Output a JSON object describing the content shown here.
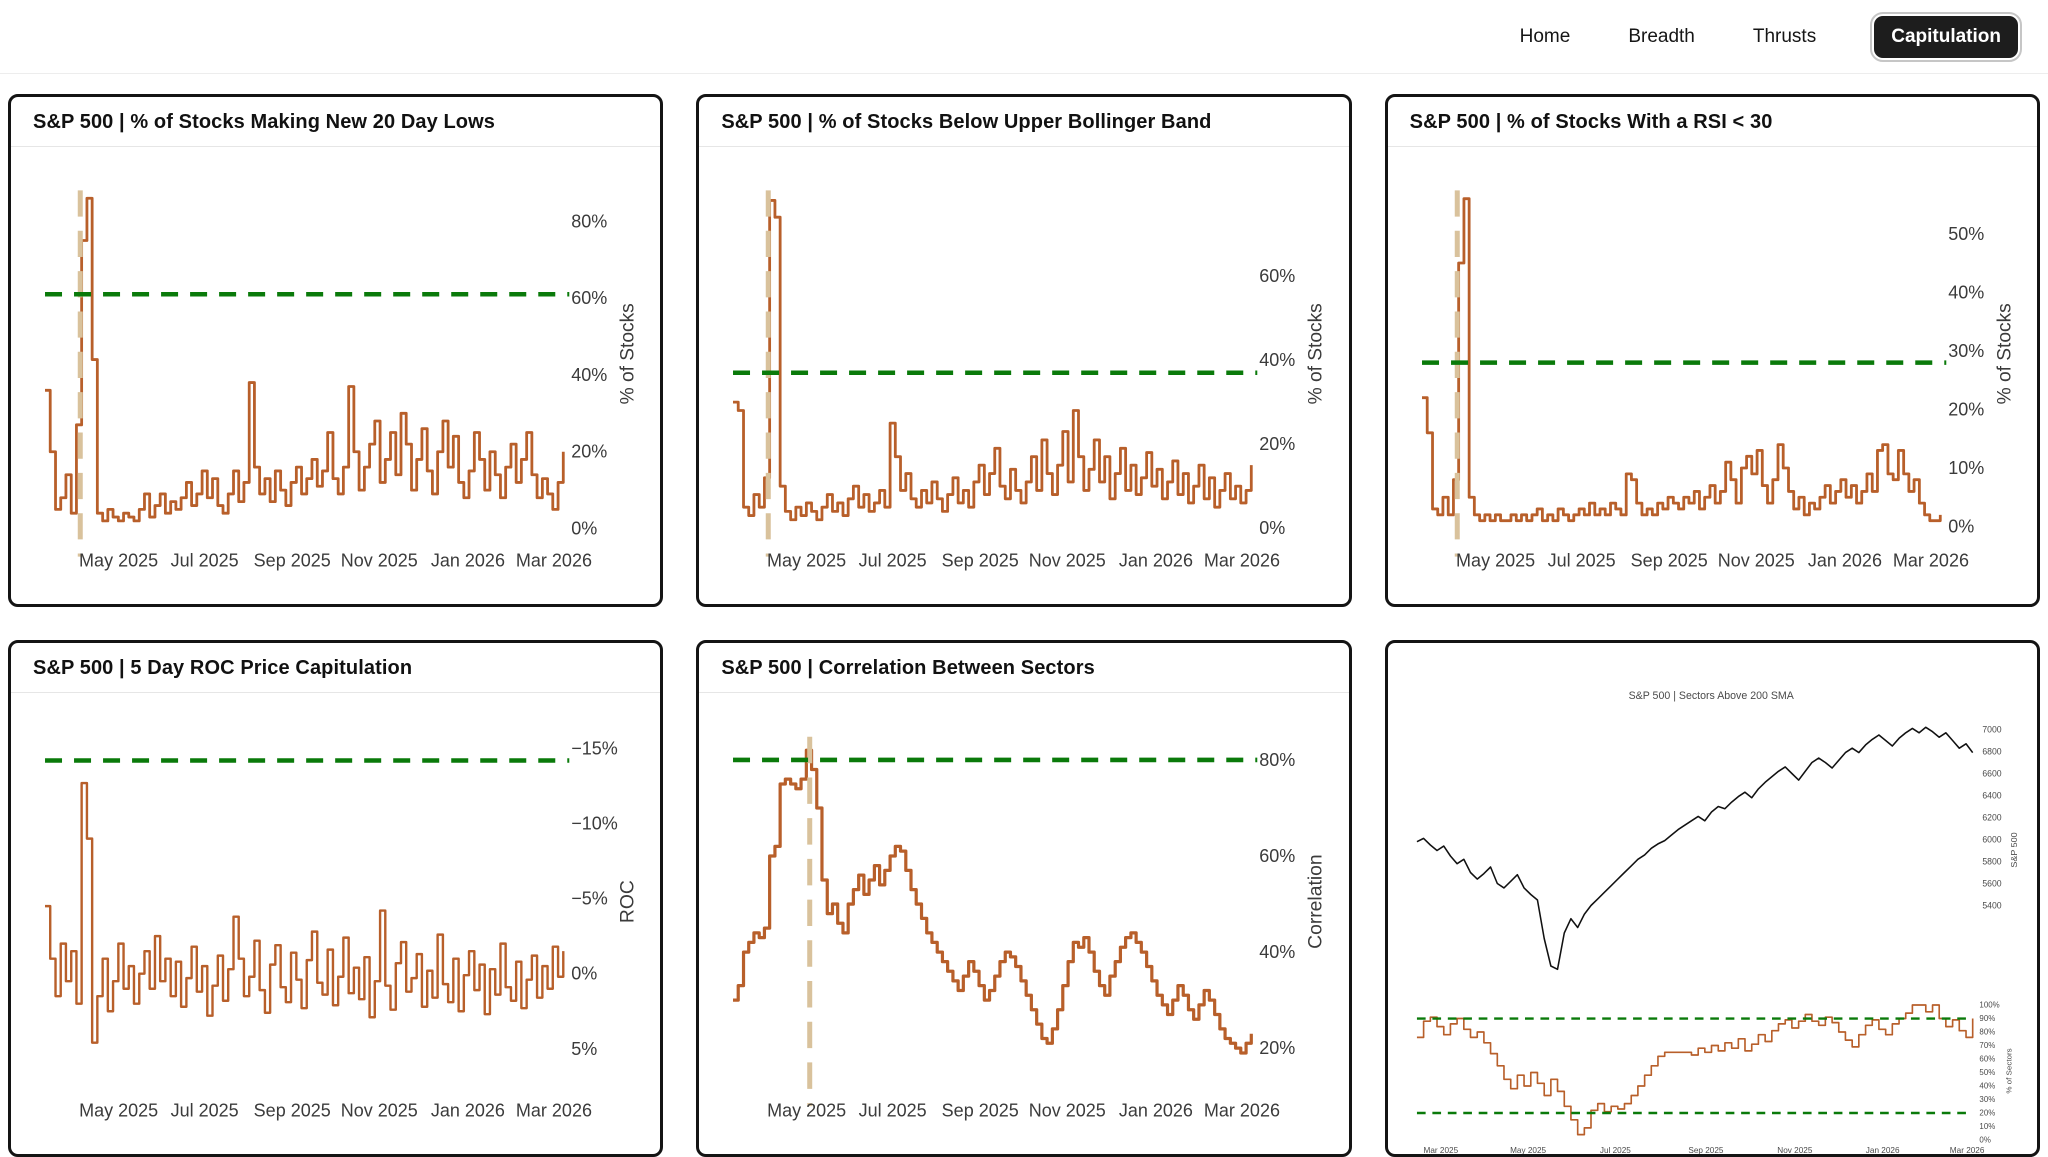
{
  "nav": {
    "items": [
      {
        "label": "Home",
        "active": false
      },
      {
        "label": "Breadth",
        "active": false
      },
      {
        "label": "Thrusts",
        "active": false
      },
      {
        "label": "Capitulation",
        "active": true
      }
    ]
  },
  "colors": {
    "series": "#b85f2a",
    "threshold": "#0a7a0a",
    "event_line": "#d9c29c",
    "price": "#111111",
    "tick_text": "#3b3b3b",
    "mini_text": "#4a4a4a"
  },
  "panels": [
    {
      "title": "S&P 500 | % of Stocks Making New 20 Day Lows"
    },
    {
      "title": "S&P 500 | % of Stocks Below Upper Bollinger Band"
    },
    {
      "title": "S&P 500 | % of Stocks With a RSI < 30"
    },
    {
      "title": "S&P 500 | 5 Day ROC Price Capitulation"
    },
    {
      "title": "S&P 500 | Correlation Between Sectors"
    }
  ],
  "chart_data": [
    {
      "type": "step",
      "title": "S&P 500 | % of Stocks Making New 20 Day Lows",
      "ylabel": "% of Stocks",
      "ytop": 92,
      "ybottom": -1,
      "yticks": [
        {
          "v": 0,
          "label": "0%"
        },
        {
          "v": 20,
          "label": "20%"
        },
        {
          "v": 40,
          "label": "40%"
        },
        {
          "v": 60,
          "label": "60%"
        },
        {
          "v": 80,
          "label": "80%"
        }
      ],
      "xticks": [
        {
          "f": 0.142,
          "label": "May 2025"
        },
        {
          "f": 0.308,
          "label": "Jul 2025"
        },
        {
          "f": 0.477,
          "label": "Sep 2025"
        },
        {
          "f": 0.645,
          "label": "Nov 2025"
        },
        {
          "f": 0.816,
          "label": "Jan 2026"
        },
        {
          "f": 0.982,
          "label": "Mar 2026"
        }
      ],
      "threshold": 61,
      "vline": 0.068,
      "line_width": 2.8,
      "values": [
        36,
        20,
        5,
        8,
        14,
        4,
        27,
        75,
        86,
        44,
        4,
        2,
        5,
        3,
        2,
        4,
        3,
        2,
        5,
        9,
        3,
        6,
        9,
        4,
        7,
        5,
        8,
        12,
        6,
        9,
        15,
        8,
        13,
        6,
        4,
        9,
        15,
        7,
        12,
        38,
        16,
        9,
        13,
        7,
        15,
        10,
        6,
        12,
        16,
        9,
        13,
        18,
        11,
        15,
        25,
        13,
        9,
        16,
        37,
        20,
        10,
        16,
        22,
        28,
        12,
        18,
        25,
        14,
        30,
        22,
        10,
        18,
        26,
        15,
        9,
        20,
        28,
        16,
        24,
        12,
        8,
        15,
        25,
        18,
        10,
        20,
        14,
        8,
        16,
        22,
        12,
        18,
        25,
        14,
        8,
        13,
        9,
        5,
        12,
        20
      ]
    },
    {
      "type": "step",
      "title": "S&P 500 | % of Stocks Below Upper Bollinger Band",
      "ylabel": "% of Stocks",
      "ytop": 84,
      "ybottom": -1,
      "yticks": [
        {
          "v": 0,
          "label": "0%"
        },
        {
          "v": 20,
          "label": "20%"
        },
        {
          "v": 40,
          "label": "40%"
        },
        {
          "v": 60,
          "label": "60%"
        }
      ],
      "xticks": [
        {
          "f": 0.142,
          "label": "May 2025"
        },
        {
          "f": 0.308,
          "label": "Jul 2025"
        },
        {
          "f": 0.477,
          "label": "Sep 2025"
        },
        {
          "f": 0.645,
          "label": "Nov 2025"
        },
        {
          "f": 0.816,
          "label": "Jan 2026"
        },
        {
          "f": 0.982,
          "label": "Mar 2026"
        }
      ],
      "threshold": 37,
      "vline": 0.068,
      "line_width": 2.8,
      "values": [
        30,
        28,
        5,
        3,
        8,
        5,
        12,
        78,
        74,
        10,
        4,
        2,
        5,
        3,
        6,
        4,
        2,
        5,
        8,
        4,
        6,
        3,
        7,
        10,
        5,
        8,
        4,
        6,
        9,
        5,
        25,
        17,
        9,
        13,
        7,
        5,
        9,
        6,
        11,
        7,
        4,
        8,
        12,
        6,
        9,
        5,
        11,
        15,
        8,
        13,
        19,
        10,
        7,
        14,
        9,
        6,
        11,
        17,
        9,
        21,
        13,
        8,
        15,
        23,
        11,
        28,
        17,
        9,
        14,
        21,
        11,
        17,
        7,
        13,
        19,
        9,
        15,
        8,
        12,
        18,
        10,
        14,
        7,
        11,
        16,
        8,
        13,
        6,
        10,
        15,
        7,
        12,
        5,
        9,
        13,
        7,
        10,
        6,
        9,
        15
      ]
    },
    {
      "type": "step",
      "title": "S&P 500 | % of Stocks With a RSI < 30",
      "ylabel": "% of Stocks",
      "ytop": 60,
      "ybottom": -1,
      "yticks": [
        {
          "v": 0,
          "label": "0%"
        },
        {
          "v": 10,
          "label": "10%"
        },
        {
          "v": 20,
          "label": "20%"
        },
        {
          "v": 30,
          "label": "30%"
        },
        {
          "v": 40,
          "label": "40%"
        },
        {
          "v": 50,
          "label": "50%"
        }
      ],
      "xticks": [
        {
          "f": 0.142,
          "label": "May 2025"
        },
        {
          "f": 0.308,
          "label": "Jul 2025"
        },
        {
          "f": 0.477,
          "label": "Sep 2025"
        },
        {
          "f": 0.645,
          "label": "Nov 2025"
        },
        {
          "f": 0.816,
          "label": "Jan 2026"
        },
        {
          "f": 0.982,
          "label": "Mar 2026"
        }
      ],
      "threshold": 28,
      "vline": 0.068,
      "line_width": 2.8,
      "values": [
        22,
        16,
        3,
        2,
        5,
        2,
        8,
        45,
        56,
        5,
        2,
        1,
        2,
        1,
        2,
        1,
        1,
        2,
        1,
        2,
        1,
        2,
        3,
        1,
        2,
        1,
        3,
        2,
        1,
        2,
        3,
        2,
        4,
        2,
        3,
        2,
        4,
        3,
        2,
        9,
        8,
        4,
        2,
        3,
        2,
        4,
        3,
        5,
        4,
        3,
        5,
        4,
        6,
        3,
        5,
        7,
        4,
        6,
        11,
        8,
        4,
        10,
        12,
        9,
        13,
        7,
        4,
        8,
        14,
        10,
        6,
        3,
        5,
        2,
        4,
        3,
        5,
        7,
        4,
        6,
        8,
        5,
        7,
        4,
        6,
        9,
        6,
        13,
        14,
        9,
        8,
        13,
        9,
        6,
        8,
        4,
        2,
        1,
        1,
        2
      ]
    },
    {
      "type": "step",
      "title": "S&P 500 | 5 Day ROC Price Capitulation",
      "ylabel": "ROC",
      "ytop": -16.8,
      "ybottom": 7.2,
      "yticks": [
        {
          "v": -15,
          "label": "−15%"
        },
        {
          "v": -10,
          "label": "−10%"
        },
        {
          "v": -5,
          "label": "−5%"
        },
        {
          "v": 0,
          "label": "0%"
        },
        {
          "v": 5,
          "label": "5%"
        }
      ],
      "xticks": [
        {
          "f": 0.142,
          "label": "May 2025"
        },
        {
          "f": 0.308,
          "label": "Jul 2025"
        },
        {
          "f": 0.477,
          "label": "Sep 2025"
        },
        {
          "f": 0.645,
          "label": "Nov 2025"
        },
        {
          "f": 0.816,
          "label": "Jan 2026"
        },
        {
          "f": 0.982,
          "label": "Mar 2026"
        }
      ],
      "threshold": -14.2,
      "vline": null,
      "line_width": 2.4,
      "values": [
        -4.5,
        -1,
        1.5,
        -2,
        0.5,
        -1.5,
        2,
        -12.7,
        -9,
        4.6,
        1.5,
        -1,
        2.5,
        0.5,
        -2,
        1,
        -0.5,
        2,
        0,
        -1.5,
        1,
        -2.5,
        0.5,
        -1,
        1.5,
        -0.8,
        2.2,
        0.3,
        -1.8,
        1.2,
        -0.5,
        2.8,
        0.8,
        -1.2,
        1.8,
        -0.3,
        -3.8,
        -1,
        1.5,
        0.2,
        -2.2,
        1.1,
        2.6,
        -0.6,
        -1.9,
        0.9,
        1.9,
        -1.4,
        0.4,
        2.3,
        -0.9,
        -2.8,
        0.6,
        1.4,
        -1.6,
        2.1,
        0.2,
        -2.4,
        1.3,
        -0.4,
        1.7,
        -1.1,
        2.9,
        0.5,
        -4.2,
        0.8,
        2.4,
        -0.7,
        -2.1,
        1.2,
        0.3,
        -1.3,
        2.2,
        -0.2,
        1.6,
        -2.6,
        0.7,
        1.9,
        -1,
        2.5,
        0.1,
        -1.5,
        1.1,
        -0.6,
        2.7,
        -0.3,
        1.4,
        -2,
        0.9,
        1.8,
        -0.8,
        2.3,
        0.4,
        -1.2,
        1.6,
        -0.5,
        1,
        -1.8,
        0.2,
        -1.5
      ]
    },
    {
      "type": "step",
      "title": "S&P 500 | Correlation Between Sectors",
      "ylabel": "Correlation",
      "ytop": 88,
      "ybottom": 13,
      "yticks": [
        {
          "v": 20,
          "label": "20%"
        },
        {
          "v": 40,
          "label": "40%"
        },
        {
          "v": 60,
          "label": "60%"
        },
        {
          "v": 80,
          "label": "80%"
        }
      ],
      "xticks": [
        {
          "f": 0.142,
          "label": "May 2025"
        },
        {
          "f": 0.308,
          "label": "Jul 2025"
        },
        {
          "f": 0.477,
          "label": "Sep 2025"
        },
        {
          "f": 0.645,
          "label": "Nov 2025"
        },
        {
          "f": 0.816,
          "label": "Jan 2026"
        },
        {
          "f": 0.982,
          "label": "Mar 2026"
        }
      ],
      "threshold": 80,
      "vline": 0.148,
      "line_width": 3.2,
      "values": [
        30,
        33,
        40,
        42,
        44,
        43,
        45,
        60,
        62,
        75,
        76,
        75,
        74,
        76,
        82,
        78,
        70,
        55,
        48,
        50,
        46,
        44,
        50,
        53,
        56,
        52,
        55,
        58,
        54,
        57,
        60,
        62,
        61,
        57,
        53,
        50,
        47,
        44,
        42,
        40,
        38,
        36,
        34,
        32,
        35,
        38,
        36,
        33,
        30,
        32,
        35,
        38,
        40,
        39,
        37,
        34,
        31,
        28,
        25,
        22,
        21,
        24,
        28,
        33,
        38,
        42,
        41,
        43,
        40,
        36,
        33,
        31,
        35,
        38,
        41,
        43,
        44,
        42,
        40,
        37,
        34,
        31,
        29,
        27,
        30,
        33,
        31,
        28,
        26,
        29,
        32,
        30,
        27,
        24,
        22,
        21,
        20,
        19,
        21,
        23
      ]
    },
    {
      "type": "composite",
      "title": "S&P 500 | Sectors Above 200 SMA",
      "xticks": [
        {
          "f": 0.043,
          "label": "Mar 2025"
        },
        {
          "f": 0.2,
          "label": "May 2025"
        },
        {
          "f": 0.357,
          "label": "Jul 2025"
        },
        {
          "f": 0.52,
          "label": "Sep 2025"
        },
        {
          "f": 0.68,
          "label": "Nov 2025"
        },
        {
          "f": 0.838,
          "label": "Jan 2026"
        },
        {
          "f": 0.99,
          "label": "Mar 2026"
        }
      ],
      "price": {
        "ylabel": "S&P 500",
        "ytop": 7150,
        "ybottom": 4650,
        "yticks": [
          {
            "v": 7000,
            "label": "7000"
          },
          {
            "v": 6800,
            "label": "6800"
          },
          {
            "v": 6600,
            "label": "6600"
          },
          {
            "v": 6400,
            "label": "6400"
          },
          {
            "v": 6200,
            "label": "6200"
          },
          {
            "v": 6000,
            "label": "6000"
          },
          {
            "v": 5800,
            "label": "5800"
          },
          {
            "v": 5600,
            "label": "5600"
          },
          {
            "v": 5400,
            "label": "5400"
          }
        ],
        "values": [
          5980,
          6010,
          5950,
          5900,
          5940,
          5850,
          5780,
          5820,
          5700,
          5640,
          5690,
          5750,
          5600,
          5560,
          5620,
          5680,
          5560,
          5500,
          5450,
          5100,
          4850,
          4820,
          5150,
          5280,
          5200,
          5320,
          5400,
          5460,
          5520,
          5580,
          5640,
          5700,
          5760,
          5820,
          5860,
          5920,
          5960,
          5990,
          6040,
          6090,
          6130,
          6170,
          6210,
          6170,
          6250,
          6300,
          6280,
          6340,
          6390,
          6430,
          6380,
          6460,
          6520,
          6570,
          6620,
          6660,
          6600,
          6540,
          6620,
          6700,
          6740,
          6700,
          6650,
          6720,
          6790,
          6830,
          6790,
          6860,
          6910,
          6950,
          6900,
          6850,
          6920,
          6970,
          7010,
          6970,
          7020,
          6980,
          6930,
          6970,
          6900,
          6830,
          6870,
          6790
        ]
      },
      "sectors": {
        "ylabel": "% of Sectors",
        "ytop": 103,
        "ybottom": 0,
        "thresholds": [
          90,
          20
        ],
        "yticks": [
          {
            "v": 100,
            "label": "100%"
          },
          {
            "v": 90,
            "label": "90%"
          },
          {
            "v": 80,
            "label": "80%"
          },
          {
            "v": 70,
            "label": "70%"
          },
          {
            "v": 60,
            "label": "60%"
          },
          {
            "v": 50,
            "label": "50%"
          },
          {
            "v": 40,
            "label": "40%"
          },
          {
            "v": 30,
            "label": "30%"
          },
          {
            "v": 20,
            "label": "20%"
          },
          {
            "v": 10,
            "label": "10%"
          },
          {
            "v": 0,
            "label": "0%"
          }
        ],
        "values": [
          76,
          88,
          91,
          84,
          78,
          86,
          90,
          82,
          76,
          80,
          72,
          64,
          55,
          45,
          38,
          48,
          40,
          50,
          42,
          33,
          45,
          36,
          25,
          15,
          4,
          9,
          22,
          27,
          21,
          25,
          23,
          27,
          33,
          40,
          48,
          55,
          62,
          65,
          65,
          65,
          65,
          63,
          68,
          65,
          70,
          66,
          72,
          68,
          75,
          66,
          71,
          78,
          73,
          81,
          86,
          89,
          83,
          88,
          93,
          88,
          85,
          91,
          87,
          80,
          74,
          69,
          78,
          85,
          89,
          82,
          78,
          86,
          90,
          94,
          100,
          100,
          95,
          100,
          90,
          84,
          89,
          81,
          76,
          90
        ]
      }
    }
  ]
}
